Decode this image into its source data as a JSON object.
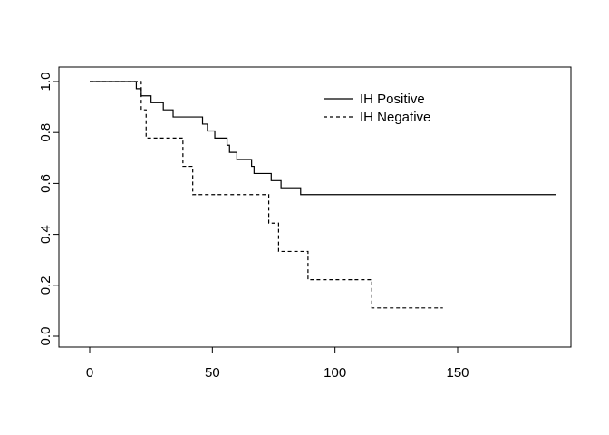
{
  "chart_data": {
    "type": "line",
    "title": "",
    "xlabel": "",
    "ylabel": "",
    "xlim": [
      0,
      190
    ],
    "ylim": [
      0,
      1.0
    ],
    "x_ticks": [
      0,
      50,
      100,
      150
    ],
    "y_ticks": [
      0.0,
      0.2,
      0.4,
      0.6,
      0.8,
      1.0
    ],
    "x_tick_labels": [
      "0",
      "50",
      "100",
      "150"
    ],
    "y_tick_labels": [
      "0.0",
      "0.2",
      "0.4",
      "0.6",
      "0.8",
      "1.0"
    ],
    "grid": false,
    "legend_position": "top-right",
    "series": [
      {
        "name": "IH Positive",
        "style": "solid",
        "color": "#000000",
        "steps": [
          [
            0,
            1.0
          ],
          [
            19,
            0.972
          ],
          [
            21,
            0.944
          ],
          [
            25,
            0.917
          ],
          [
            30,
            0.889
          ],
          [
            34,
            0.861
          ],
          [
            46,
            0.833
          ],
          [
            48,
            0.806
          ],
          [
            51,
            0.778
          ],
          [
            56,
            0.75
          ],
          [
            57,
            0.722
          ],
          [
            60,
            0.694
          ],
          [
            66,
            0.667
          ],
          [
            67,
            0.639
          ],
          [
            74,
            0.611
          ],
          [
            78,
            0.583
          ],
          [
            86,
            0.556
          ],
          [
            190,
            0.556
          ]
        ]
      },
      {
        "name": "IH Negative",
        "style": "dashed",
        "color": "#000000",
        "steps": [
          [
            0,
            1.0
          ],
          [
            21,
            0.889
          ],
          [
            23,
            0.778
          ],
          [
            38,
            0.667
          ],
          [
            42,
            0.556
          ],
          [
            73,
            0.444
          ],
          [
            77,
            0.333
          ],
          [
            89,
            0.222
          ],
          [
            115,
            0.111
          ],
          [
            144,
            0.111
          ]
        ]
      }
    ]
  }
}
